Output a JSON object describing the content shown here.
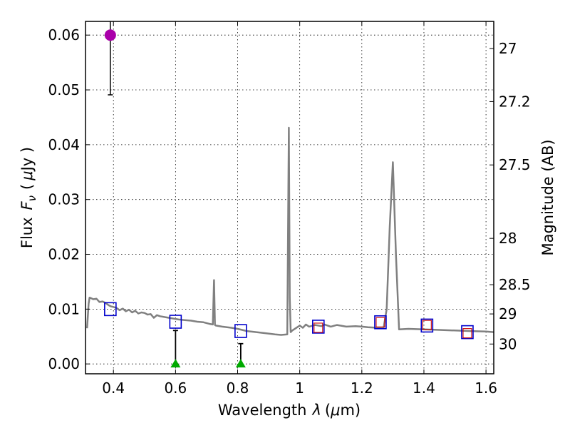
{
  "chart_data": {
    "type": "scatter",
    "xlabel_text": "Wavelength",
    "xlabel_symbol": "λ",
    "xlabel_unit_open": "(",
    "xlabel_unit_mu": "μ",
    "xlabel_unit_rest": "m)",
    "ylabel_text": "Flux",
    "ylabel_symbol": "F",
    "ylabel_sub": "ν",
    "ylabel_unit_open": "(",
    "ylabel_unit_mu": "μ",
    "ylabel_unit_rest": "Jy )",
    "y2label": "Magnitude (AB)",
    "xlim": [
      0.31,
      1.625
    ],
    "ylim": [
      -0.0018,
      0.0625
    ],
    "xticks": [
      0.4,
      0.6,
      0.8,
      1.0,
      1.2,
      1.4,
      1.6
    ],
    "xtick_labels": [
      "0.4",
      "0.6",
      "0.8",
      "1",
      "1.2",
      "1.4",
      "1.6"
    ],
    "yticks": [
      0.0,
      0.01,
      0.02,
      0.03,
      0.04,
      0.05,
      0.06
    ],
    "ytick_labels": [
      "0.00",
      "0.01",
      "0.02",
      "0.03",
      "0.04",
      "0.05",
      "0.06"
    ],
    "mag_ticks": [
      27,
      27.2,
      27.5,
      28,
      28.5,
      29,
      30
    ],
    "mag_tick_labels": [
      "27",
      "27.2",
      "27.5",
      "28",
      "28.5",
      "29",
      "30"
    ],
    "grid": true,
    "colors": {
      "model": "#808080",
      "predicted": "#0000cc",
      "observed_box": "#cc0000",
      "detection": "#aa00aa",
      "upper_limit": "#00aa00",
      "errorbar": "#000000"
    },
    "series": [
      {
        "name": "model SED",
        "style": "line",
        "x": [
          0.315,
          0.32,
          0.323,
          0.328,
          0.335,
          0.345,
          0.355,
          0.365,
          0.375,
          0.385,
          0.392,
          0.4,
          0.41,
          0.42,
          0.43,
          0.44,
          0.45,
          0.46,
          0.47,
          0.48,
          0.49,
          0.5,
          0.51,
          0.52,
          0.53,
          0.54,
          0.55,
          0.57,
          0.59,
          0.61,
          0.63,
          0.65,
          0.67,
          0.69,
          0.71,
          0.72,
          0.724,
          0.727,
          0.73,
          0.75,
          0.78,
          0.8,
          0.83,
          0.86,
          0.89,
          0.92,
          0.94,
          0.96,
          0.965,
          0.968,
          0.971,
          0.976,
          1.0,
          1.01,
          1.02,
          1.03,
          1.05,
          1.07,
          1.08,
          1.1,
          1.12,
          1.15,
          1.18,
          1.2,
          1.22,
          1.25,
          1.27,
          1.28,
          1.29,
          1.3,
          1.31,
          1.32,
          1.35,
          1.4,
          1.45,
          1.5,
          1.55,
          1.6,
          1.625
        ],
        "y": [
          0.0065,
          0.011,
          0.0121,
          0.012,
          0.0118,
          0.0119,
          0.0113,
          0.0114,
          0.0111,
          0.0107,
          0.0105,
          0.0104,
          0.0102,
          0.0098,
          0.0101,
          0.0096,
          0.0099,
          0.0094,
          0.0097,
          0.0092,
          0.0094,
          0.0093,
          0.009,
          0.0091,
          0.0084,
          0.0089,
          0.0087,
          0.0085,
          0.0083,
          0.0081,
          0.008,
          0.0079,
          0.0077,
          0.0076,
          0.0073,
          0.0072,
          0.0153,
          0.0071,
          0.007,
          0.0068,
          0.0066,
          0.0064,
          0.006,
          0.0058,
          0.0056,
          0.0054,
          0.0053,
          0.0054,
          0.0431,
          0.012,
          0.0058,
          0.0061,
          0.007,
          0.0066,
          0.0072,
          0.0068,
          0.0071,
          0.0069,
          0.0072,
          0.0068,
          0.0071,
          0.0068,
          0.0069,
          0.0068,
          0.0067,
          0.0066,
          0.0065,
          0.01,
          0.025,
          0.0368,
          0.02,
          0.0063,
          0.0064,
          0.0063,
          0.0062,
          0.0061,
          0.006,
          0.0059,
          0.0058
        ]
      },
      {
        "name": "predicted band flux",
        "style": "open-square",
        "x": [
          0.39,
          0.6,
          0.81,
          1.06,
          1.26,
          1.41,
          1.54
        ],
        "y": [
          0.01,
          0.0077,
          0.006,
          0.0068,
          0.0076,
          0.007,
          0.0058
        ]
      },
      {
        "name": "observed flux",
        "style": "small-square",
        "x": [
          1.06,
          1.26,
          1.41,
          1.54
        ],
        "y": [
          0.0066,
          0.0076,
          0.0071,
          0.0056
        ]
      },
      {
        "name": "detection",
        "style": "filled-circle",
        "x": [
          0.39
        ],
        "y": [
          0.06
        ],
        "yerr_low": [
          0.0491
        ],
        "yerr_high": [
          0.0625
        ]
      },
      {
        "name": "upper limits",
        "style": "filled-triangle",
        "x": [
          0.6,
          0.81
        ],
        "y": [
          0.0,
          0.0
        ],
        "yerr_high": [
          0.0061,
          0.0037
        ]
      }
    ]
  }
}
